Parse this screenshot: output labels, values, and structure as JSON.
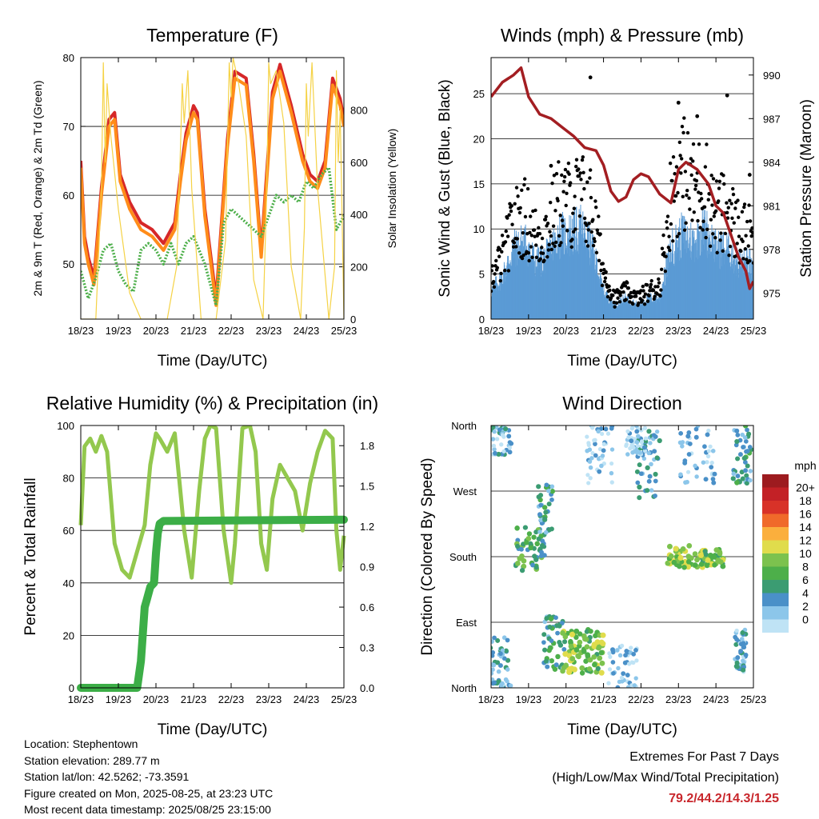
{
  "chart_data": [
    {
      "id": "temp",
      "type": "line",
      "title": "Temperature (F)",
      "xlabel": "Time (Day/UTC)",
      "ylabel": "2m & 9m T (Red, Orange) & 2m Td (Green)",
      "ylabel2": "Solar Insolation (Yellow)",
      "x_ticks": [
        "18/23",
        "19/23",
        "20/23",
        "21/23",
        "22/23",
        "23/23",
        "24/23",
        "25/23"
      ],
      "ylim": [
        42,
        80
      ],
      "y_ticks": [
        50,
        60,
        70,
        80
      ],
      "y2lim": [
        0,
        1000
      ],
      "y2_ticks": [
        0,
        200,
        400,
        600,
        800
      ],
      "series": [
        {
          "role": "t2m",
          "color": "#d62728",
          "x": [
            0,
            0.1,
            0.2,
            0.35,
            0.55,
            0.75,
            0.9,
            1.05,
            1.3,
            1.6,
            1.9,
            2.2,
            2.5,
            2.65,
            2.8,
            3.0,
            3.1,
            3.3,
            3.6,
            3.9,
            4.1,
            4.4,
            4.6,
            4.8,
            5.1,
            5.3,
            5.6,
            5.9,
            6.1,
            6.3,
            6.5,
            6.7,
            6.9,
            7.0
          ],
          "y": [
            65,
            54,
            51,
            48,
            61,
            71,
            72,
            63,
            59,
            56,
            55,
            53,
            56,
            63,
            69,
            73,
            72,
            58,
            45,
            68,
            78,
            77,
            66,
            52,
            75,
            79,
            73,
            66,
            63,
            62,
            65,
            77,
            74,
            71
          ]
        },
        {
          "role": "t9m",
          "color": "#ff8c1a",
          "x": [
            0,
            0.1,
            0.2,
            0.35,
            0.55,
            0.75,
            0.9,
            1.05,
            1.3,
            1.6,
            1.9,
            2.2,
            2.5,
            2.65,
            2.8,
            3.0,
            3.1,
            3.3,
            3.6,
            3.9,
            4.1,
            4.4,
            4.6,
            4.8,
            5.1,
            5.3,
            5.6,
            5.9,
            6.1,
            6.3,
            6.5,
            6.7,
            6.9,
            7.0
          ],
          "y": [
            64,
            53,
            50,
            47,
            60,
            70,
            71,
            62,
            58,
            55,
            54,
            52,
            55,
            62,
            68,
            72,
            71,
            57,
            44,
            67,
            77,
            76,
            65,
            51,
            74,
            78,
            72,
            65,
            62,
            61,
            64,
            76,
            73,
            70
          ]
        },
        {
          "role": "td2m",
          "color": "#4daf4a",
          "x": [
            0,
            0.2,
            0.4,
            0.6,
            0.8,
            1.0,
            1.2,
            1.4,
            1.6,
            1.8,
            2.0,
            2.2,
            2.4,
            2.6,
            2.8,
            3.0,
            3.3,
            3.6,
            3.8,
            4.0,
            4.2,
            4.4,
            4.6,
            4.8,
            5.0,
            5.2,
            5.4,
            5.6,
            5.8,
            6.0,
            6.2,
            6.4,
            6.6,
            6.8,
            7.0
          ],
          "y": [
            49,
            45,
            48,
            52,
            53,
            49,
            47,
            46,
            52,
            53,
            52,
            50,
            53,
            50,
            53,
            54,
            50,
            44,
            56,
            58,
            57,
            56,
            55,
            54,
            57,
            60,
            59,
            60,
            59,
            62,
            61,
            63,
            64,
            55,
            57
          ]
        },
        {
          "role": "solar",
          "color": "#f5d245",
          "x": [
            0,
            0.4,
            0.55,
            0.6,
            0.65,
            0.7,
            0.8,
            1.0,
            1.3,
            1.6,
            1.9,
            2.3,
            2.55,
            2.65,
            2.7,
            2.75,
            2.85,
            2.95,
            3.2,
            3.6,
            3.85,
            3.95,
            4.0,
            4.05,
            4.2,
            4.4,
            4.6,
            4.85,
            4.95,
            5.0,
            5.05,
            5.2,
            5.4,
            5.6,
            5.85,
            5.95,
            6.0,
            6.05,
            6.15,
            6.3,
            6.6,
            6.75,
            6.8,
            6.85,
            6.9,
            7.0
          ],
          "y": [
            0,
            0,
            500,
            980,
            600,
            900,
            700,
            420,
            100,
            0,
            0,
            0,
            200,
            650,
            900,
            750,
            950,
            500,
            0,
            0,
            300,
            980,
            850,
            1000,
            900,
            700,
            150,
            0,
            500,
            980,
            900,
            950,
            750,
            200,
            0,
            350,
            900,
            700,
            980,
            500,
            0,
            200,
            950,
            600,
            800,
            0
          ]
        }
      ]
    },
    {
      "id": "wind",
      "type": "scatter",
      "title": "Winds (mph) & Pressure (mb)",
      "xlabel": "Time (Day/UTC)",
      "ylabel": "Sonic Wind & Gust (Blue, Black)",
      "ylabel2": "Station Pressure (Maroon)",
      "x_ticks": [
        "18/23",
        "19/23",
        "20/23",
        "21/23",
        "22/23",
        "23/23",
        "24/23",
        "25/23"
      ],
      "ylim": [
        0,
        29
      ],
      "y_ticks": [
        0,
        5,
        10,
        15,
        20,
        25
      ],
      "y2lim": [
        973.2,
        991.2
      ],
      "y2_ticks": [
        975,
        978,
        981,
        984,
        987,
        990
      ],
      "wind_envelope": {
        "x": [
          0,
          0.3,
          0.6,
          0.9,
          1.2,
          1.5,
          1.8,
          2.1,
          2.4,
          2.7,
          3.0,
          3.3,
          3.6,
          3.9,
          4.2,
          4.5,
          4.8,
          5.1,
          5.4,
          5.7,
          6.0,
          6.3,
          6.6,
          6.9,
          7.0
        ],
        "y": [
          4,
          6,
          10,
          11,
          8,
          9,
          12,
          12,
          13,
          10,
          4,
          2,
          3,
          2,
          3,
          3,
          10,
          12,
          11,
          13,
          10,
          10,
          8,
          8,
          6
        ]
      },
      "gust_envelope": {
        "x": [
          0,
          0.3,
          0.6,
          0.9,
          1.2,
          1.5,
          1.8,
          2.1,
          2.4,
          2.7,
          3.0,
          3.3,
          3.6,
          3.9,
          4.2,
          4.5,
          4.8,
          5.1,
          5.4,
          5.7,
          6.0,
          6.3,
          6.6,
          6.9,
          7.0
        ],
        "y": [
          6,
          9,
          14,
          15,
          12,
          13,
          17,
          17,
          18,
          16,
          7,
          3,
          4,
          3,
          4,
          5,
          18,
          22,
          19,
          20,
          15,
          16,
          13,
          12,
          10
        ]
      },
      "series": [
        {
          "name": "Station Pressure",
          "role": "pressure",
          "color": "#a31e22",
          "x": [
            0,
            0.3,
            0.6,
            0.8,
            1.0,
            1.3,
            1.6,
            1.9,
            2.2,
            2.5,
            2.8,
            3.0,
            3.2,
            3.4,
            3.6,
            3.8,
            4.0,
            4.2,
            4.5,
            4.8,
            5.0,
            5.2,
            5.5,
            5.8,
            6.0,
            6.2,
            6.4,
            6.6,
            6.8,
            6.9,
            7.0
          ],
          "y": [
            988.5,
            989.5,
            990.0,
            990.5,
            988.5,
            987.3,
            987.0,
            986.4,
            985.8,
            985.0,
            984.8,
            983.8,
            982.0,
            981.3,
            981.6,
            982.8,
            983.2,
            983.0,
            981.8,
            981.2,
            983.5,
            984.0,
            983.5,
            982.5,
            981.0,
            980.5,
            979.0,
            977.5,
            976.5,
            975.3,
            975.8
          ]
        },
        {
          "name": "Gust peaks",
          "role": "gust_points",
          "color": "#000000",
          "x": [
            1.6,
            2.65,
            5.0,
            5.5,
            6.3,
            6.9
          ],
          "y": [
            17,
            26.8,
            24,
            22.5,
            24.8,
            16
          ]
        }
      ]
    },
    {
      "id": "rh",
      "type": "line",
      "title": "Relative Humidity (%) & Precipitation (in)",
      "xlabel": "Time (Day/UTC)",
      "ylabel": "Percent & Total Rainfall",
      "x_ticks": [
        "18/23",
        "19/23",
        "20/23",
        "21/23",
        "22/23",
        "23/23",
        "24/23",
        "25/23"
      ],
      "ylim": [
        0,
        100
      ],
      "y_ticks": [
        0,
        20,
        40,
        60,
        80,
        100
      ],
      "y2lim": [
        0,
        1.95
      ],
      "y2_ticks": [
        "0.0",
        "0.3",
        "0.6",
        "0.9",
        "1.2",
        "1.5",
        "1.8"
      ],
      "series": [
        {
          "role": "rh",
          "color": "#93c84e",
          "x": [
            0,
            0.1,
            0.25,
            0.4,
            0.55,
            0.7,
            0.9,
            1.1,
            1.3,
            1.5,
            1.7,
            1.85,
            2.0,
            2.1,
            2.3,
            2.5,
            2.75,
            2.95,
            3.15,
            3.3,
            3.45,
            3.6,
            3.8,
            4.0,
            4.1,
            4.3,
            4.5,
            4.65,
            4.8,
            4.95,
            5.1,
            5.3,
            5.5,
            5.7,
            5.9,
            6.1,
            6.3,
            6.5,
            6.7,
            6.8,
            6.9,
            7.0
          ],
          "y": [
            62,
            92,
            95,
            90,
            96,
            90,
            55,
            45,
            42,
            52,
            62,
            85,
            97,
            95,
            90,
            97,
            60,
            42,
            75,
            95,
            100,
            99,
            60,
            40,
            55,
            99,
            100,
            90,
            55,
            45,
            72,
            85,
            80,
            75,
            60,
            78,
            90,
            98,
            95,
            60,
            45,
            58
          ]
        },
        {
          "role": "precip_total",
          "color": "#3cae47",
          "x": [
            0,
            1.5,
            1.6,
            1.7,
            1.75,
            1.85,
            1.95,
            2.0,
            2.05,
            2.1,
            2.2,
            7.0
          ],
          "y": [
            0,
            0,
            0.2,
            0.6,
            0.65,
            0.75,
            0.78,
            1.0,
            1.15,
            1.22,
            1.24,
            1.25
          ]
        }
      ]
    },
    {
      "id": "dir",
      "type": "scatter",
      "title": "Wind Direction",
      "xlabel": "Time (Day/UTC)",
      "ylabel": "Direction (Colored By Speed)",
      "x_ticks": [
        "18/23",
        "19/23",
        "20/23",
        "21/23",
        "22/23",
        "23/23",
        "24/23",
        "25/23"
      ],
      "y_ticks": [
        "North",
        "East",
        "South",
        "West",
        "North"
      ],
      "ylim": [
        0,
        360
      ],
      "legend_title": "mph",
      "legend_labels": [
        "0",
        "2",
        "4",
        "6",
        "8",
        "10",
        "12",
        "14",
        "16",
        "18",
        "20+"
      ],
      "legend_colors": [
        "#bfe3f5",
        "#8cc6ea",
        "#4a90c8",
        "#3b9c72",
        "#4daf4a",
        "#7cc24e",
        "#e0dc4c",
        "#fbaf3d",
        "#f06a2a",
        "#d83228",
        "#c32126",
        "#9d1b1f"
      ],
      "clusters": [
        {
          "x": 0.2,
          "dx": 0.25,
          "dir": 30,
          "ddir": 40,
          "speed": 4
        },
        {
          "x": 0.3,
          "dx": 0.25,
          "dir": 345,
          "ddir": 25,
          "speed": 3
        },
        {
          "x": 1.0,
          "dx": 0.35,
          "dir": 190,
          "ddir": 30,
          "speed": 7
        },
        {
          "x": 1.45,
          "dx": 0.2,
          "dir": 230,
          "ddir": 50,
          "speed": 5
        },
        {
          "x": 1.7,
          "dx": 0.3,
          "dir": 60,
          "ddir": 40,
          "speed": 5
        },
        {
          "x": 2.2,
          "dx": 0.3,
          "dir": 50,
          "ddir": 30,
          "speed": 10
        },
        {
          "x": 2.75,
          "dx": 0.25,
          "dir": 50,
          "ddir": 30,
          "speed": 9
        },
        {
          "x": 2.9,
          "dx": 0.35,
          "dir": 320,
          "ddir": 40,
          "speed": 1
        },
        {
          "x": 3.5,
          "dx": 0.4,
          "dir": 30,
          "ddir": 30,
          "speed": 2
        },
        {
          "x": 4.2,
          "dx": 0.3,
          "dir": 310,
          "ddir": 50,
          "speed": 4
        },
        {
          "x": 3.9,
          "dx": 0.3,
          "dir": 340,
          "ddir": 20,
          "speed": 1
        },
        {
          "x": 5.15,
          "dx": 0.5,
          "dir": 180,
          "ddir": 15,
          "speed": 10
        },
        {
          "x": 5.9,
          "dx": 0.3,
          "dir": 178,
          "ddir": 12,
          "speed": 9
        },
        {
          "x": 5.5,
          "dx": 0.5,
          "dir": 320,
          "ddir": 40,
          "speed": 2
        },
        {
          "x": 6.7,
          "dx": 0.25,
          "dir": 320,
          "ddir": 40,
          "speed": 5
        },
        {
          "x": 6.65,
          "dx": 0.15,
          "dir": 50,
          "ddir": 30,
          "speed": 3
        }
      ]
    }
  ],
  "info": {
    "location": "Location: Stephentown",
    "elevation": "Station elevation: 289.77 m",
    "latlon": "Station lat/lon: 42.5262; -73.3591",
    "created": "Figure created on Mon, 2025-08-25, at 23:23 UTC",
    "latest": "Most recent data timestamp: 2025/08/25 23:15:00"
  },
  "extremes": {
    "title": "Extremes For Past 7 Days",
    "subtitle": "(High/Low/Max Wind/Total Precipitation)",
    "values": "79.2/44.2/14.3/1.25"
  }
}
